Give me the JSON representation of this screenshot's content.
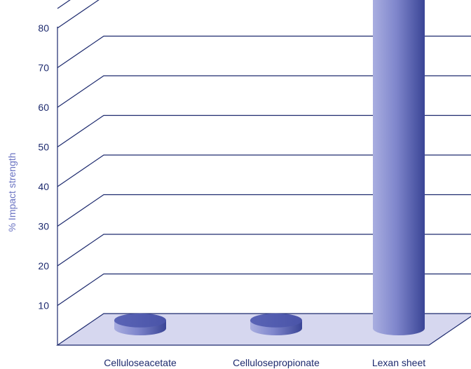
{
  "chart_data": {
    "type": "bar",
    "categories": [
      "Celluloseacetate",
      "Cellulosepropionate",
      "Lexan sheet"
    ],
    "values": [
      2,
      2,
      86
    ],
    "ylabel": "% Impact strength",
    "yticks": [
      "10",
      "20",
      "30",
      "40",
      "50",
      "60",
      "70",
      "80"
    ],
    "ylim": [
      0,
      86
    ],
    "grid": true,
    "style": "3d-cylinder",
    "colors": {
      "axis_line": "#1d2a6e",
      "floor": "#d6d7ef",
      "bar_dark": "#3a4596",
      "bar_light": "#a9aee0",
      "tick_text": "#1d2a6e",
      "axis_title_text": "#6a73c2"
    }
  }
}
